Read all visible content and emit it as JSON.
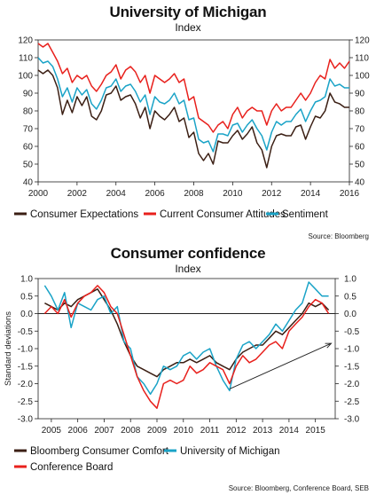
{
  "chart_data": [
    {
      "type": "line",
      "title": "University of Michigan",
      "subtitle": "Index",
      "source": "Source: Bloomberg",
      "ylim": [
        40,
        120
      ],
      "yticks": [
        "120",
        "110",
        "100",
        "90",
        "80",
        "70",
        "60",
        "50",
        "40"
      ],
      "xlim": [
        2000,
        2016
      ],
      "xticks": [
        "2000",
        "2002",
        "2004",
        "2006",
        "2008",
        "2010",
        "2012",
        "2014",
        "2016"
      ],
      "grid": false,
      "legend_position": "bottom",
      "colors": {
        "expectations": "#3b1f14",
        "current": "#e8201c",
        "sentiment": "#1aa3c7"
      },
      "series": [
        {
          "name": "Consumer Expectations",
          "key": "expectations",
          "x": [
            2000,
            2000.25,
            2000.5,
            2000.75,
            2001,
            2001.25,
            2001.5,
            2001.75,
            2002,
            2002.25,
            2002.5,
            2002.75,
            2003,
            2003.25,
            2003.5,
            2003.75,
            2004,
            2004.25,
            2004.5,
            2004.75,
            2005,
            2005.25,
            2005.5,
            2005.75,
            2006,
            2006.25,
            2006.5,
            2006.75,
            2007,
            2007.25,
            2007.5,
            2007.75,
            2008,
            2008.25,
            2008.5,
            2008.75,
            2009,
            2009.25,
            2009.5,
            2009.75,
            2010,
            2010.25,
            2010.5,
            2010.75,
            2011,
            2011.25,
            2011.5,
            2011.75,
            2012,
            2012.25,
            2012.5,
            2012.75,
            2013,
            2013.25,
            2013.5,
            2013.75,
            2014,
            2014.25,
            2014.5,
            2014.75,
            2015,
            2015.25,
            2015.5,
            2015.75,
            2016
          ],
          "values": [
            103,
            101,
            103,
            100,
            93,
            78,
            86,
            79,
            88,
            83,
            88,
            77,
            75,
            80,
            89,
            90,
            94,
            86,
            88,
            89,
            84,
            76,
            82,
            70,
            80,
            77,
            75,
            78,
            82,
            74,
            76,
            65,
            68,
            56,
            52,
            56,
            50,
            63,
            62,
            62,
            66,
            69,
            64,
            67,
            71,
            62,
            58,
            48,
            60,
            66,
            67,
            66,
            66,
            71,
            72,
            64,
            71,
            77,
            76,
            80,
            90,
            85,
            84,
            82,
            82
          ]
        },
        {
          "name": "Current Consumer Attitudes",
          "key": "current",
          "x": [
            2000,
            2000.25,
            2000.5,
            2000.75,
            2001,
            2001.25,
            2001.5,
            2001.75,
            2002,
            2002.25,
            2002.5,
            2002.75,
            2003,
            2003.25,
            2003.5,
            2003.75,
            2004,
            2004.25,
            2004.5,
            2004.75,
            2005,
            2005.25,
            2005.5,
            2005.75,
            2006,
            2006.25,
            2006.5,
            2006.75,
            2007,
            2007.25,
            2007.5,
            2007.75,
            2008,
            2008.25,
            2008.5,
            2008.75,
            2009,
            2009.25,
            2009.5,
            2009.75,
            2010,
            2010.25,
            2010.5,
            2010.75,
            2011,
            2011.25,
            2011.5,
            2011.75,
            2012,
            2012.25,
            2012.5,
            2012.75,
            2013,
            2013.25,
            2013.5,
            2013.75,
            2014,
            2014.25,
            2014.5,
            2014.75,
            2015,
            2015.25,
            2015.5,
            2015.75,
            2016
          ],
          "values": [
            118,
            116,
            118,
            113,
            108,
            101,
            104,
            96,
            100,
            98,
            100,
            94,
            91,
            95,
            100,
            102,
            106,
            98,
            103,
            105,
            102,
            96,
            100,
            90,
            100,
            98,
            96,
            98,
            101,
            96,
            98,
            86,
            88,
            76,
            74,
            72,
            68,
            72,
            74,
            70,
            78,
            82,
            76,
            80,
            82,
            80,
            80,
            72,
            80,
            84,
            80,
            82,
            82,
            86,
            90,
            86,
            90,
            96,
            100,
            98,
            109,
            104,
            107,
            104,
            108
          ]
        },
        {
          "name": "Sentiment",
          "key": "sentiment",
          "x": [
            2000,
            2000.25,
            2000.5,
            2000.75,
            2001,
            2001.25,
            2001.5,
            2001.75,
            2002,
            2002.25,
            2002.5,
            2002.75,
            2003,
            2003.25,
            2003.5,
            2003.75,
            2004,
            2004.25,
            2004.5,
            2004.75,
            2005,
            2005.25,
            2005.5,
            2005.75,
            2006,
            2006.25,
            2006.5,
            2006.75,
            2007,
            2007.25,
            2007.5,
            2007.75,
            2008,
            2008.25,
            2008.5,
            2008.75,
            2009,
            2009.25,
            2009.5,
            2009.75,
            2010,
            2010.25,
            2010.5,
            2010.75,
            2011,
            2011.25,
            2011.5,
            2011.75,
            2012,
            2012.25,
            2012.5,
            2012.75,
            2013,
            2013.25,
            2013.5,
            2013.75,
            2014,
            2014.25,
            2014.5,
            2014.75,
            2015,
            2015.25,
            2015.5,
            2015.75,
            2016
          ],
          "values": [
            110,
            107,
            108,
            105,
            98,
            88,
            93,
            85,
            93,
            89,
            92,
            84,
            81,
            86,
            93,
            94,
            98,
            91,
            94,
            95,
            91,
            85,
            89,
            78,
            88,
            85,
            84,
            86,
            90,
            84,
            86,
            75,
            76,
            64,
            62,
            63,
            57,
            67,
            67,
            66,
            72,
            73,
            68,
            72,
            75,
            70,
            66,
            58,
            68,
            74,
            72,
            74,
            74,
            78,
            81,
            74,
            80,
            85,
            86,
            88,
            98,
            94,
            95,
            93,
            93
          ]
        }
      ]
    },
    {
      "type": "line",
      "title": "Consumer confidence",
      "subtitle": "Index",
      "source": "Source: Bloomberg, Conference Board, SEB",
      "ylabel": "Standard deviations",
      "ylim": [
        -3.0,
        1.0
      ],
      "yticks": [
        "1.0",
        "0.5",
        "0.0",
        "-0.5",
        "-1.0",
        "-1.5",
        "-2.0",
        "-2.5",
        "-3.0"
      ],
      "xlim": [
        2004.5,
        2015.75
      ],
      "xticks": [
        "2005",
        "2006",
        "2007",
        "2008",
        "2009",
        "2010",
        "2011",
        "2012",
        "2013",
        "2014",
        "2015"
      ],
      "zero_line": true,
      "trend_arrow": {
        "from": [
          2011.75,
          -2.15
        ],
        "to": [
          2015.6,
          -0.85
        ]
      },
      "legend_position": "bottom",
      "colors": {
        "bloomberg": "#3b1f14",
        "michigan": "#1aa3c7",
        "conference": "#e8201c"
      },
      "series": [
        {
          "name": "Bloomberg Consumer Comfort",
          "key": "bloomberg",
          "x": [
            2004.75,
            2005,
            2005.25,
            2005.5,
            2005.75,
            2006,
            2006.25,
            2006.5,
            2006.75,
            2007,
            2007.25,
            2007.5,
            2007.75,
            2008,
            2008.25,
            2008.5,
            2008.75,
            2009,
            2009.25,
            2009.5,
            2009.75,
            2010,
            2010.25,
            2010.5,
            2010.75,
            2011,
            2011.25,
            2011.5,
            2011.75,
            2012,
            2012.25,
            2012.5,
            2012.75,
            2013,
            2013.25,
            2013.5,
            2013.75,
            2014,
            2014.25,
            2014.5,
            2014.75,
            2015,
            2015.25,
            2015.5
          ],
          "values": [
            0.3,
            0.2,
            0.1,
            0.3,
            0.2,
            0.4,
            0.5,
            0.6,
            0.7,
            0.4,
            0.1,
            -0.3,
            -0.8,
            -1.2,
            -1.5,
            -1.6,
            -1.7,
            -1.8,
            -1.6,
            -1.5,
            -1.4,
            -1.4,
            -1.3,
            -1.4,
            -1.3,
            -1.2,
            -1.4,
            -1.5,
            -1.6,
            -1.3,
            -1.1,
            -1.0,
            -0.9,
            -0.9,
            -0.7,
            -0.5,
            -0.6,
            -0.4,
            -0.2,
            0.0,
            0.3,
            0.2,
            0.3,
            0.1
          ]
        },
        {
          "name": "University of Michigan",
          "key": "michigan",
          "x": [
            2004.75,
            2005,
            2005.25,
            2005.5,
            2005.75,
            2006,
            2006.25,
            2006.5,
            2006.75,
            2007,
            2007.25,
            2007.5,
            2007.75,
            2008,
            2008.25,
            2008.5,
            2008.75,
            2009,
            2009.25,
            2009.5,
            2009.75,
            2010,
            2010.25,
            2010.5,
            2010.75,
            2011,
            2011.25,
            2011.5,
            2011.75,
            2012,
            2012.25,
            2012.5,
            2012.75,
            2013,
            2013.25,
            2013.5,
            2013.75,
            2014,
            2014.25,
            2014.5,
            2014.75,
            2015,
            2015.25,
            2015.5
          ],
          "values": [
            0.8,
            0.5,
            0.1,
            0.6,
            -0.4,
            0.3,
            0.2,
            0.1,
            0.4,
            0.5,
            0.0,
            0.2,
            -0.8,
            -1.0,
            -1.8,
            -2.0,
            -2.3,
            -2.0,
            -1.5,
            -1.6,
            -1.5,
            -1.2,
            -1.1,
            -1.3,
            -1.1,
            -1.0,
            -1.5,
            -1.9,
            -2.2,
            -1.3,
            -0.9,
            -0.8,
            -1.0,
            -0.8,
            -0.6,
            -0.3,
            -0.5,
            -0.2,
            0.1,
            0.3,
            0.9,
            0.7,
            0.5,
            0.5
          ]
        },
        {
          "name": "Conference Board",
          "key": "conference",
          "x": [
            2004.75,
            2005,
            2005.25,
            2005.5,
            2005.75,
            2006,
            2006.25,
            2006.5,
            2006.75,
            2007,
            2007.25,
            2007.5,
            2007.75,
            2008,
            2008.25,
            2008.5,
            2008.75,
            2009,
            2009.25,
            2009.5,
            2009.75,
            2010,
            2010.25,
            2010.5,
            2010.75,
            2011,
            2011.25,
            2011.5,
            2011.75,
            2012,
            2012.25,
            2012.5,
            2012.75,
            2013,
            2013.25,
            2013.5,
            2013.75,
            2014,
            2014.25,
            2014.5,
            2014.75,
            2015,
            2015.25,
            2015.5
          ],
          "values": [
            0.0,
            0.2,
            0.0,
            0.4,
            -0.1,
            0.3,
            0.5,
            0.6,
            0.8,
            0.6,
            0.2,
            0.0,
            -0.6,
            -1.2,
            -1.8,
            -2.2,
            -2.5,
            -2.7,
            -2.0,
            -1.9,
            -2.0,
            -1.9,
            -1.5,
            -1.7,
            -1.6,
            -1.4,
            -1.5,
            -1.6,
            -2.0,
            -1.5,
            -1.2,
            -1.4,
            -1.3,
            -1.1,
            -0.9,
            -0.8,
            -1.0,
            -0.5,
            -0.3,
            -0.1,
            0.2,
            0.4,
            0.3,
            0.0
          ]
        }
      ]
    }
  ]
}
